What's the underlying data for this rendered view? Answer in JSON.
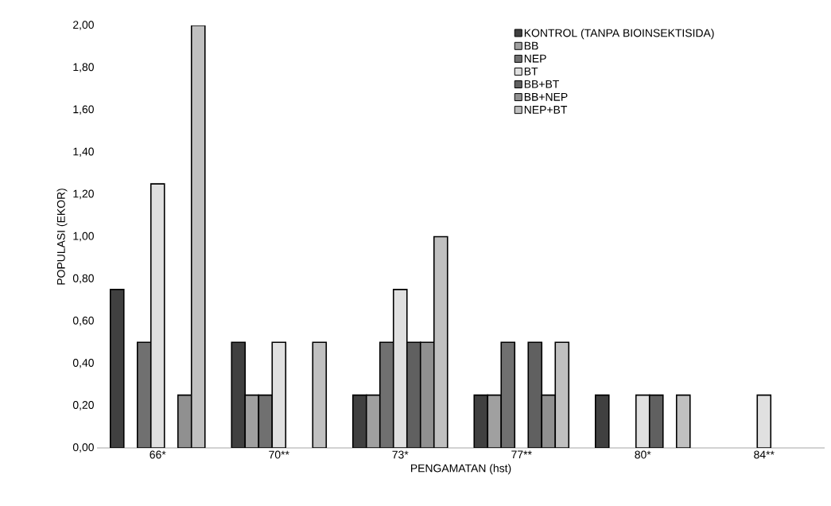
{
  "chart_data": {
    "type": "bar",
    "xlabel": "PENGAMATAN (hst)",
    "ylabel": "POPULASI (EKOR)",
    "categories": [
      "66*",
      "70**",
      "73*",
      "77**",
      "80*",
      "84**"
    ],
    "ylim": [
      0,
      2
    ],
    "yticks": [
      {
        "value": 0,
        "label": "0,00"
      },
      {
        "value": 0.2,
        "label": "0,20"
      },
      {
        "value": 0.4,
        "label": "0,40"
      },
      {
        "value": 0.6,
        "label": "0,60"
      },
      {
        "value": 0.8,
        "label": "0,80"
      },
      {
        "value": 1.0,
        "label": "1,00"
      },
      {
        "value": 1.2,
        "label": "1,20"
      },
      {
        "value": 1.4,
        "label": "1,40"
      },
      {
        "value": 1.6,
        "label": "1,60"
      },
      {
        "value": 1.8,
        "label": "1,80"
      },
      {
        "value": 2.0,
        "label": "2,00"
      }
    ],
    "legend": "top right",
    "grid": false,
    "series": [
      {
        "name": "KONTROL (TANPA BIOINSEKTISIDA)",
        "color": "#404040",
        "values": [
          0.75,
          0.5,
          0.25,
          0.25,
          0.25,
          0
        ]
      },
      {
        "name": "BB",
        "color": "#a0a0a0",
        "values": [
          0,
          0.25,
          0.25,
          0.25,
          0,
          0
        ]
      },
      {
        "name": "NEP",
        "color": "#707070",
        "values": [
          0.5,
          0.25,
          0.5,
          0.5,
          0,
          0
        ]
      },
      {
        "name": "BT",
        "color": "#e0e0e0",
        "values": [
          1.25,
          0.5,
          0.75,
          0,
          0.25,
          0.25
        ]
      },
      {
        "name": "BB+BT",
        "color": "#606060",
        "values": [
          0,
          0,
          0.5,
          0.5,
          0.25,
          0
        ]
      },
      {
        "name": "BB+NEP",
        "color": "#909090",
        "values": [
          0.25,
          0,
          0.5,
          0.25,
          0,
          0
        ]
      },
      {
        "name": "NEP+BT",
        "color": "#c0c0c0",
        "values": [
          2.0,
          0.5,
          1.0,
          0.5,
          0.25,
          0
        ]
      }
    ]
  }
}
